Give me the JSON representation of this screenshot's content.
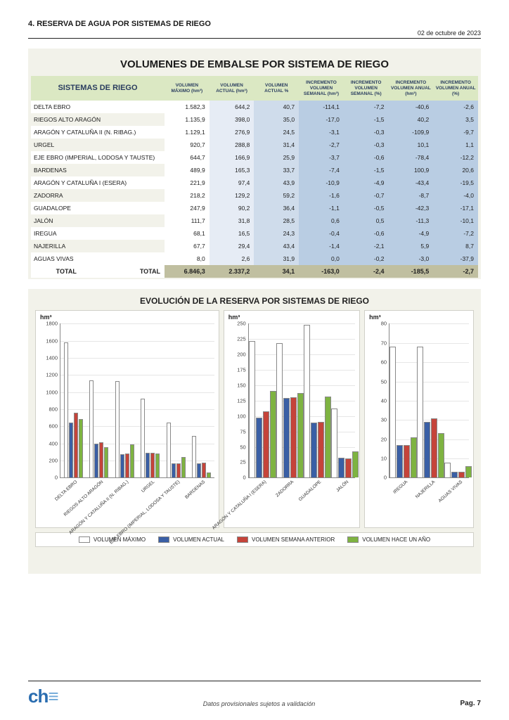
{
  "header": {
    "title": "4. RESERVA DE AGUA POR SISTEMAS DE RIEGO",
    "date": "02  de octubre de 2023"
  },
  "table": {
    "title": "VOLUMENES DE EMBALSE POR SISTEMA DE RIEGO",
    "headers": {
      "system": "SISTEMAS DE RIEGO",
      "vmax": "VOLUMEN MÁXIMO (hm³)",
      "vact": "VOLUMEN ACTUAL (hm³)",
      "pct": "VOLUMEN ACTUAL %",
      "inc_hm_week": "INCREMENTO VOLUMEN SEMANAL (hm³)",
      "inc_pct_week": "INCREMENTO VOLUMEN SEMANAL (%)",
      "inc_hm_year": "INCREMENTO VOLUMEN ANUAL (hm³)",
      "inc_pct_year": "INCREMENTO VOLUMEN ANUAL (%)"
    },
    "rows": [
      {
        "name": "DELTA EBRO",
        "vmax": "1.582,3",
        "vact": "644,2",
        "pct": "40,7",
        "ihw": "-114,1",
        "ipw": "-7,2",
        "ihy": "-40,6",
        "ipy": "-2,6"
      },
      {
        "name": "RIEGOS ALTO ARAGÓN",
        "vmax": "1.135,9",
        "vact": "398,0",
        "pct": "35,0",
        "ihw": "-17,0",
        "ipw": "-1,5",
        "ihy": "40,2",
        "ipy": "3,5"
      },
      {
        "name": "ARAGÓN Y CATALUÑA II (N. RIBAG.)",
        "vmax": "1.129,1",
        "vact": "276,9",
        "pct": "24,5",
        "ihw": "-3,1",
        "ipw": "-0,3",
        "ihy": "-109,9",
        "ipy": "-9,7"
      },
      {
        "name": "URGEL",
        "vmax": "920,7",
        "vact": "288,8",
        "pct": "31,4",
        "ihw": "-2,7",
        "ipw": "-0,3",
        "ihy": "10,1",
        "ipy": "1,1"
      },
      {
        "name": "EJE EBRO (IMPERIAL, LODOSA Y TAUSTE)",
        "vmax": "644,7",
        "vact": "166,9",
        "pct": "25,9",
        "ihw": "-3,7",
        "ipw": "-0,6",
        "ihy": "-78,4",
        "ipy": "-12,2"
      },
      {
        "name": "BARDENAS",
        "vmax": "489,9",
        "vact": "165,3",
        "pct": "33,7",
        "ihw": "-7,4",
        "ipw": "-1,5",
        "ihy": "100,9",
        "ipy": "20,6"
      },
      {
        "name": "ARAGÓN Y CATALUÑA I (ESERA)",
        "vmax": "221,9",
        "vact": "97,4",
        "pct": "43,9",
        "ihw": "-10,9",
        "ipw": "-4,9",
        "ihy": "-43,4",
        "ipy": "-19,5"
      },
      {
        "name": "ZADORRA",
        "vmax": "218,2",
        "vact": "129,2",
        "pct": "59,2",
        "ihw": "-1,6",
        "ipw": "-0,7",
        "ihy": "-8,7",
        "ipy": "-4,0"
      },
      {
        "name": "GUADALOPE",
        "vmax": "247,9",
        "vact": "90,2",
        "pct": "36,4",
        "ihw": "-1,1",
        "ipw": "-0,5",
        "ihy": "-42,3",
        "ipy": "-17,1"
      },
      {
        "name": "JALÓN",
        "vmax": "111,7",
        "vact": "31,8",
        "pct": "28,5",
        "ihw": "0,6",
        "ipw": "0,5",
        "ihy": "-11,3",
        "ipy": "-10,1"
      },
      {
        "name": "IREGUA",
        "vmax": "68,1",
        "vact": "16,5",
        "pct": "24,3",
        "ihw": "-0,4",
        "ipw": "-0,6",
        "ihy": "-4,9",
        "ipy": "-7,2"
      },
      {
        "name": "NAJERILLA",
        "vmax": "67,7",
        "vact": "29,4",
        "pct": "43,4",
        "ihw": "-1,4",
        "ipw": "-2,1",
        "ihy": "5,9",
        "ipy": "8,7"
      },
      {
        "name": "AGUAS VIVAS",
        "vmax": "8,0",
        "vact": "2,6",
        "pct": "31,9",
        "ihw": "0,0",
        "ipw": "-0,2",
        "ihy": "-3,0",
        "ipy": "-37,9"
      }
    ],
    "total_label_left": "TOTAL",
    "total_label_right": "TOTAL",
    "total": {
      "vmax": "6.846,3",
      "vact": "2.337,2",
      "pct": "34,1",
      "ihw": "-163,0",
      "ipw": "-2,4",
      "ihy": "-185,5",
      "ipy": "-2,7"
    }
  },
  "chart": {
    "title": "EVOLUCIÓN DE LA RESERVA POR SISTEMAS DE RIEGO",
    "unit": "hm³",
    "colors": {
      "vmax": "#ffffff",
      "vact": "#3a5fa5",
      "vprev": "#c5443a",
      "vyear": "#7eb341",
      "border": "#888888"
    },
    "legend": {
      "vmax": "VOLUMEN MÁXIMO",
      "vact": "VOLUMEN ACTUAL",
      "vprev": "VOLUMEN SEMANA ANTERIOR",
      "vyear": "VOLUMEN HACE UN AÑO"
    },
    "panels": [
      {
        "width_flex": 1.35,
        "ymax": 1800,
        "ystep": 200,
        "groups": [
          {
            "label": "DELTA EBRO",
            "v": [
              1582,
              644,
              758,
              685
            ]
          },
          {
            "label": "RIEGOS ALTO ARAGÓN",
            "v": [
              1136,
              398,
              415,
              358
            ]
          },
          {
            "label": "ARAGÓN Y CATALUÑA II (N. RIBAG.)",
            "v": [
              1129,
              277,
              280,
              387
            ]
          },
          {
            "label": "URGEL",
            "v": [
              921,
              289,
              292,
              279
            ]
          },
          {
            "label": "EJE EBRO (IMPERIAL, LODOSA Y TAUSTE)",
            "v": [
              645,
              167,
              171,
              245
            ]
          },
          {
            "label": "BARDENAS",
            "v": [
              490,
              165,
              173,
              64
            ]
          }
        ]
      },
      {
        "width_flex": 1.0,
        "ymax": 250,
        "ystep": 25,
        "groups": [
          {
            "label": "ARAGÓN Y CATALUÑA I (ESERA)",
            "v": [
              222,
              97,
              108,
              141
            ]
          },
          {
            "label": "ZADORRA",
            "v": [
              218,
              129,
              131,
              138
            ]
          },
          {
            "label": "GUADALOPE",
            "v": [
              248,
              90,
              91,
              132
            ]
          },
          {
            "label": "JALÓN",
            "v": [
              112,
              32,
              31,
              43
            ]
          }
        ]
      },
      {
        "width_flex": 0.8,
        "ymax": 80,
        "ystep": 10,
        "groups": [
          {
            "label": "IREGUA",
            "v": [
              68,
              17,
              17,
              21
            ]
          },
          {
            "label": "NAJERILLA",
            "v": [
              68,
              29,
              31,
              23
            ]
          },
          {
            "label": "AGUAS VIVAS",
            "v": [
              8,
              3,
              3,
              6
            ]
          }
        ]
      }
    ]
  },
  "footer": {
    "note": "Datos provisionales sujetos a validación",
    "page": "Pag. 7"
  }
}
